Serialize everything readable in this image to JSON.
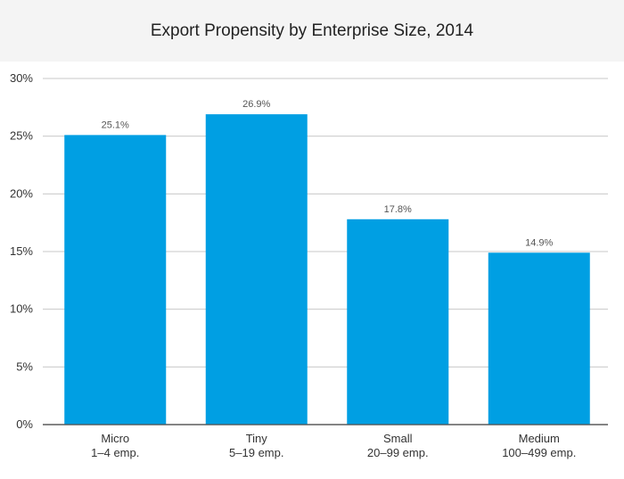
{
  "chart_data": {
    "type": "bar",
    "title": "Export Propensity by Enterprise Size, 2014",
    "xlabel": "",
    "ylabel": "",
    "ylim": [
      0,
      30
    ],
    "yticks": [
      "0%",
      "5%",
      "10%",
      "15%",
      "20%",
      "25%",
      "30%"
    ],
    "ytick_values": [
      0,
      5,
      10,
      15,
      20,
      25,
      30
    ],
    "grid": true,
    "categories": [
      [
        "Micro",
        "1–4 emp."
      ],
      [
        "Tiny",
        "5–19 emp."
      ],
      [
        "Small",
        "20–99 emp."
      ],
      [
        "Medium",
        "100–499 emp."
      ]
    ],
    "values": [
      25.1,
      26.9,
      17.8,
      14.9
    ],
    "data_labels": [
      "25.1%",
      "26.9%",
      "17.8%",
      "14.9%"
    ],
    "colors": {
      "bar": "#009fe3",
      "grid": "#c8c8c8",
      "axis": "#555555"
    }
  }
}
